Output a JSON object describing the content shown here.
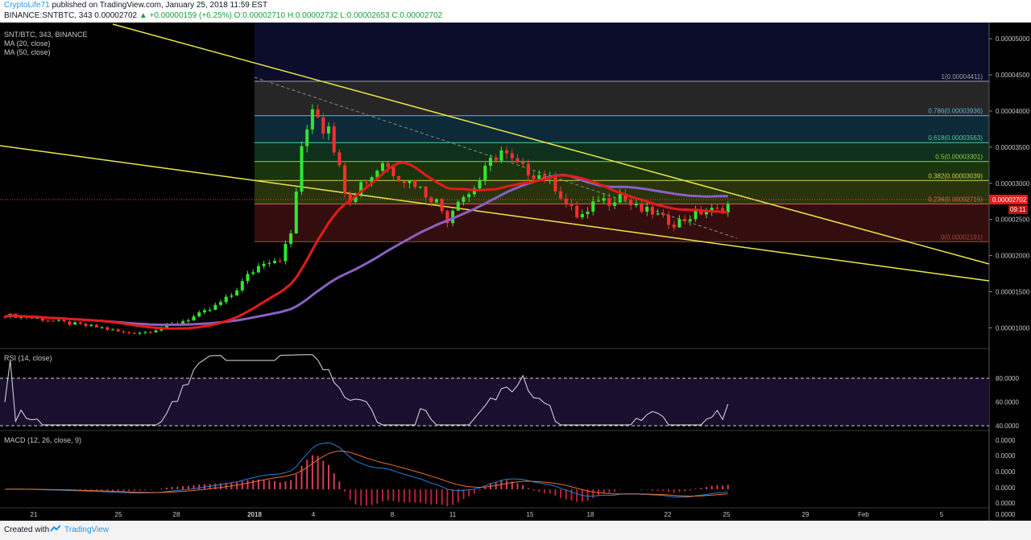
{
  "header": {
    "user": "CryptoLife71",
    "published": "published on TradingView.com, January 25, 2018 11:59 EST",
    "symbol_line": "BINANCE:SNTBTC, 343",
    "last": "0.00002702",
    "change": "▲ +0.00000159 (+6.25%)",
    "ohlc": "O:0.00002710 H:0.00002732 L:0.00002653 C:0.00002702"
  },
  "legends": {
    "main": "SNT/BTC, 343, BINANCE",
    "ma20": "MA (20, close)",
    "ma50": "MA (50, close)",
    "rsi": "RSI (14, close)",
    "macd": "MACD (12, 26, close, 9)"
  },
  "price_label": {
    "price": "0.00002702",
    "countdown": "09:11"
  },
  "fib_labels": [
    {
      "ratio": 1,
      "text": "1(0.00004411)",
      "price": 4.411e-05
    },
    {
      "ratio": 0.786,
      "text": "0.786(0.00003936)",
      "price": 3.936e-05
    },
    {
      "ratio": 0.618,
      "text": "0.618(0.00003563)",
      "price": 3.563e-05
    },
    {
      "ratio": 0.5,
      "text": "0.5(0.00003301)",
      "price": 3.301e-05
    },
    {
      "ratio": 0.382,
      "text": "0.382(0.00003039)",
      "price": 3.039e-05
    },
    {
      "ratio": 0.236,
      "text": "0.236(0.00002715)",
      "price": 2.715e-05
    },
    {
      "ratio": 0,
      "text": "0(0.00002191)",
      "price": 2.191e-05
    }
  ],
  "y_ticks": [
    "0.00005000",
    "0.00004500",
    "0.00004000",
    "0.00003500",
    "0.00003000",
    "0.00002500",
    "0.00002000",
    "0.00001500",
    "0.00001000"
  ],
  "rsi_ticks": [
    "80.0000",
    "60.0000",
    "40.0000"
  ],
  "macd_ticks": [
    "0.0000",
    "0.0000",
    "0.0000",
    "0.0000",
    "0.0000",
    "0.0000"
  ],
  "x_ticks": [
    "21",
    "25",
    "28",
    "2018",
    "4",
    "8",
    "11",
    "15",
    "18",
    "22",
    "25",
    "29",
    "Feb",
    "5"
  ],
  "footer": {
    "created": "Created with",
    "brand": "TradingView"
  },
  "colors": {
    "background": "#000000",
    "bull": "#2ee82e",
    "bear": "#ff2e2e",
    "ma20": "#e51a1a",
    "ma50": "#8c5fc0",
    "trendline": "#e8e84a",
    "fib": "#7fb9d9",
    "rsi": "#e0e0e0",
    "macd": "#2b7fd6",
    "signal": "#e8702a"
  },
  "chart_data": {
    "type": "candlestick",
    "title": "SNT/BTC, 343, BINANCE",
    "y_range": [
      7.7e-06,
      5.18e-05
    ],
    "indicators": [
      "MA (20, close)",
      "MA (50, close)",
      "RSI (14, close)",
      "MACD (12, 26, close, 9)"
    ],
    "anchors": [
      [
        0,
        1.18e-05
      ],
      [
        6,
        1.13e-05
      ],
      [
        12,
        1.06e-05
      ],
      [
        18,
        1e-05
      ],
      [
        22,
        9.3e-06
      ],
      [
        26,
        9.4e-06
      ],
      [
        30,
        1.02e-05
      ],
      [
        34,
        1.12e-05
      ],
      [
        38,
        1.25e-05
      ],
      [
        42,
        1.45e-05
      ],
      [
        45,
        1.72e-05
      ],
      [
        48,
        1.92e-05
      ],
      [
        51,
        1.96e-05
      ],
      [
        53,
        2.3e-05
      ],
      [
        54,
        2.9e-05
      ],
      [
        55,
        3.45e-05
      ],
      [
        56,
        3.75e-05
      ],
      [
        57,
        4.08e-05
      ],
      [
        58,
        3.95e-05
      ],
      [
        59,
        3.75e-05
      ],
      [
        60,
        3.85e-05
      ],
      [
        61,
        3.5e-05
      ],
      [
        62,
        3.2e-05
      ],
      [
        63,
        2.93e-05
      ],
      [
        64,
        2.8e-05
      ],
      [
        66,
        3e-05
      ],
      [
        68,
        3.1e-05
      ],
      [
        70,
        3.3e-05
      ],
      [
        72,
        3.15e-05
      ],
      [
        74,
        3.05e-05
      ],
      [
        76,
        3e-05
      ],
      [
        78,
        2.85e-05
      ],
      [
        80,
        2.75e-05
      ],
      [
        82,
        2.5e-05
      ],
      [
        84,
        2.8e-05
      ],
      [
        86,
        2.85e-05
      ],
      [
        88,
        3.05e-05
      ],
      [
        90,
        3.3e-05
      ],
      [
        92,
        3.45e-05
      ],
      [
        94,
        3.3e-05
      ],
      [
        96,
        3.2e-05
      ],
      [
        98,
        3.13e-05
      ],
      [
        100,
        3.1e-05
      ],
      [
        102,
        2.95e-05
      ],
      [
        104,
        2.72e-05
      ],
      [
        106,
        2.55e-05
      ],
      [
        108,
        2.58e-05
      ],
      [
        110,
        2.8e-05
      ],
      [
        112,
        2.75e-05
      ],
      [
        114,
        2.85e-05
      ],
      [
        116,
        2.7e-05
      ],
      [
        118,
        2.62e-05
      ],
      [
        120,
        2.6e-05
      ],
      [
        122,
        2.5e-05
      ],
      [
        124,
        2.45e-05
      ],
      [
        126,
        2.5e-05
      ],
      [
        128,
        2.58e-05
      ],
      [
        130,
        2.62e-05
      ],
      [
        132,
        2.62e-05
      ],
      [
        134,
        2.7e-05
      ]
    ]
  }
}
